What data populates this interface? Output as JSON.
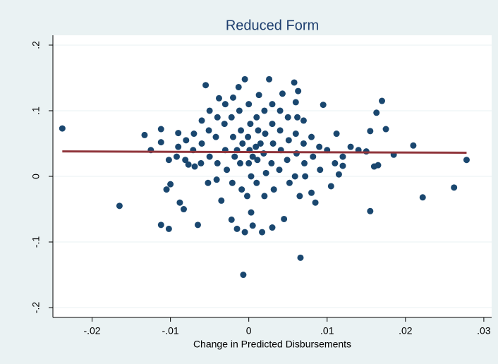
{
  "chart_data": {
    "type": "scatter",
    "title": "Reduced Form",
    "x_label": "Change in Predicted Disbursements",
    "xlim": [
      -0.025,
      0.031
    ],
    "ylim": [
      -0.215,
      0.215
    ],
    "xticks": [
      {
        "value": -0.02,
        "label": "-.02"
      },
      {
        "value": -0.01,
        "label": "-.01"
      },
      0,
      {
        "value": 0.01,
        "label": ".01"
      },
      {
        "value": 0.02,
        "label": ".02"
      },
      {
        "value": 0.03,
        "label": ".03"
      }
    ],
    "yticks": [
      {
        "value": -0.2,
        "label": "-.2"
      },
      {
        "value": -0.1,
        "label": "-.1"
      },
      0,
      {
        "value": 0.1,
        "label": ".1"
      },
      {
        "value": 0.2,
        "label": ".2"
      }
    ],
    "grid": true,
    "series": [
      {
        "type": "scatter",
        "color": "#1a476f",
        "x": [
          -0.0238,
          -0.0165,
          -0.0112,
          -0.0102,
          -0.0105,
          -0.01,
          -0.0088,
          -0.0083,
          -0.0065,
          -0.0007,
          0.0066,
          0.0155,
          0.0222,
          0.0262,
          0.0278,
          0.021,
          0.0175,
          0.017,
          0.0163,
          0.0155,
          0.0165,
          0.016,
          0.015,
          0.0185,
          0.0115,
          0.012,
          0.0105,
          0.0112,
          0.0095,
          0.0063,
          0.0058,
          0.0026,
          -0.0005,
          -0.0013,
          -0.0055,
          -0.0038,
          0.0013,
          0.0043,
          0.006,
          -0.0133,
          -0.0125,
          -0.0112,
          -0.0112,
          -0.0102,
          -0.009,
          -0.0077,
          -0.0035,
          -0.0022,
          -0.0015,
          -0.0005,
          0.0005,
          0.0017,
          0.003,
          0.0045,
          0.0003,
          0.0085,
          0.008,
          0.0065,
          -0.006,
          -0.005,
          -0.0042,
          -0.004,
          -0.0031,
          -0.003,
          -0.0028,
          -0.0022,
          -0.002,
          -0.0018,
          -0.0021,
          -0.0012,
          -0.001,
          -0.0008,
          -0.0011,
          -0.0009,
          0,
          0.0002,
          -0.0001,
          0.0001,
          0,
          0.0003,
          -0.0002,
          0.001,
          0.0012,
          0.0009,
          0.0011,
          0.001,
          0.002,
          0.0021,
          0.0019,
          0.0022,
          0.003,
          0.0031,
          0.0029,
          0.0032,
          0.004,
          0.0041,
          0.0039,
          0.005,
          0.0051,
          0.0049,
          0.006,
          0.0061,
          0.0059,
          0.007,
          0.0071,
          0.008,
          0.0082,
          0.009,
          0.0091,
          -0.007,
          -0.0071,
          -0.0069,
          -0.008,
          -0.0081,
          -0.009,
          -0.0092,
          -0.006,
          -0.005,
          -0.0051,
          -0.004,
          -0.0041,
          -0.003,
          0.003,
          0.004,
          0.007,
          0.002,
          -0.002,
          0.0062,
          0.01,
          0.013,
          0.012,
          0.014,
          0.011,
          -0.0061,
          -0.0052,
          0.0052,
          0.0072,
          0.0005,
          -0.0015,
          0.0015
        ],
        "values": [
          0.073,
          -0.045,
          -0.074,
          -0.08,
          -0.02,
          -0.012,
          -0.04,
          -0.05,
          -0.074,
          -0.15,
          -0.124,
          -0.053,
          -0.032,
          -0.017,
          0.025,
          0.047,
          0.072,
          0.115,
          0.097,
          0.069,
          0.017,
          0.015,
          0.038,
          0.033,
          0.003,
          0.016,
          -0.015,
          0.065,
          0.109,
          0.13,
          0.143,
          0.148,
          0.148,
          0.136,
          0.139,
          0.119,
          0.124,
          0.126,
          0.113,
          0.063,
          0.04,
          0.052,
          0.072,
          0.025,
          0.066,
          0.018,
          -0.037,
          -0.066,
          -0.08,
          -0.085,
          -0.075,
          -0.085,
          -0.078,
          -0.065,
          -0.055,
          -0.04,
          -0.025,
          -0.03,
          0.05,
          0.03,
          0.06,
          0.02,
          0.08,
          0.04,
          0.01,
          0.09,
          0.06,
          0.03,
          -0.01,
          0.1,
          0.07,
          0.05,
          0.02,
          -0.02,
          0.11,
          0.08,
          0.06,
          0.04,
          0.02,
          0,
          -0.03,
          0.09,
          0.07,
          0.045,
          0.025,
          -0.01,
          0.1,
          0.065,
          0.035,
          0.005,
          0.08,
          0.05,
          0.02,
          -0.02,
          0.07,
          0.04,
          0.01,
          0.09,
          0.055,
          0.025,
          0.065,
          0.035,
          0,
          0.05,
          0.02,
          0.06,
          0.03,
          0.045,
          0.01,
          0.065,
          0.04,
          0.015,
          0.055,
          0.025,
          0.045,
          0.03,
          0.085,
          0.1,
          0.07,
          0.09,
          -0.005,
          0.11,
          0.11,
          0.1,
          0.085,
          -0.03,
          0.12,
          0.09,
          0.04,
          0.045,
          0.03,
          0.04,
          0.02,
          0.02,
          -0.01,
          -0.01,
          0,
          0.03,
          0.04,
          0.05
        ]
      },
      {
        "type": "line",
        "color": "#90353b",
        "x": [
          -0.0238,
          0.0278
        ],
        "values": [
          0.038,
          0.036
        ]
      }
    ]
  }
}
